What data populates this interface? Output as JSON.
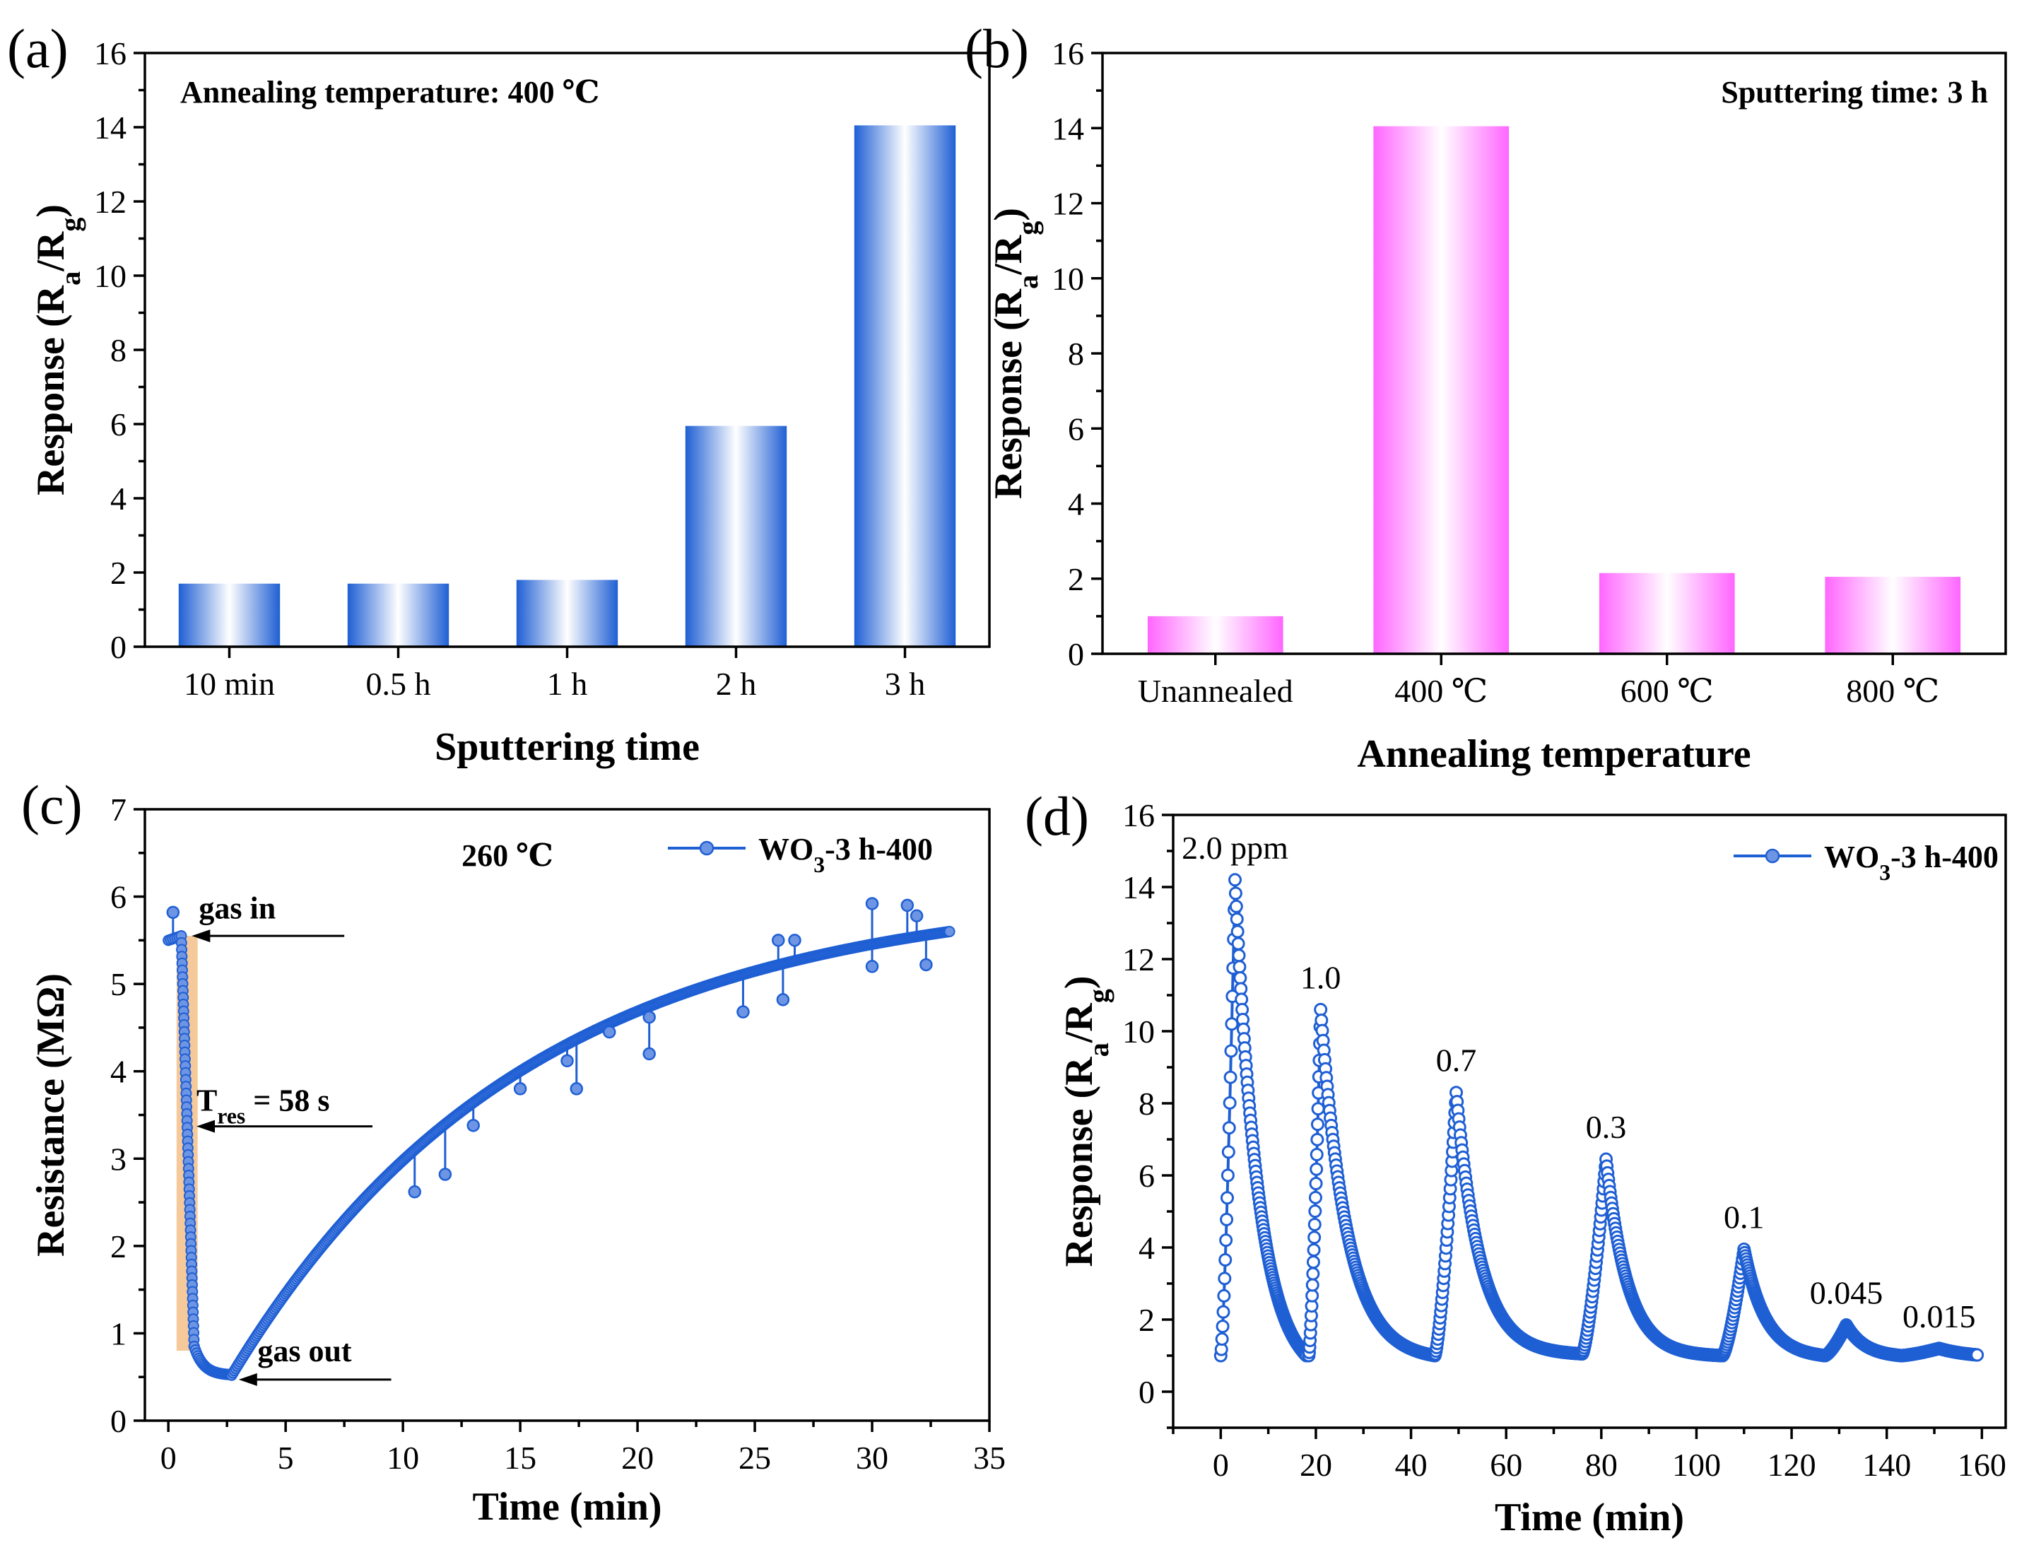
{
  "figure_width": 2871,
  "figure_height": 2193,
  "colors": {
    "blue": "#1f5fd4",
    "pink": "#ff66ff",
    "orange": "#f5c088",
    "axis": "#000000"
  },
  "chart_data": [
    {
      "id": "a",
      "type": "bar",
      "panel_label": "(a)",
      "title": "Annealing temperature: 400 ℃",
      "xlabel": "Sputtering time",
      "ylabel_parts": [
        "Response (R",
        "a",
        "/R",
        "g",
        ")"
      ],
      "categories": [
        "10 min",
        "0.5 h",
        "1 h",
        "2 h",
        "3 h"
      ],
      "values": [
        1.7,
        1.7,
        1.8,
        5.95,
        14.05
      ],
      "ylim": [
        0,
        16
      ],
      "yticks": [
        0,
        2,
        4,
        6,
        8,
        10,
        12,
        14,
        16
      ],
      "bar_color": "#1f5fd4",
      "grid": false
    },
    {
      "id": "b",
      "type": "bar",
      "panel_label": "(b)",
      "title": "Sputtering time: 3 h",
      "xlabel": "Annealing temperature",
      "ylabel_parts": [
        "Response (R",
        "a",
        "/R",
        "g",
        ")"
      ],
      "categories": [
        "Unannealed",
        "400 ℃",
        "600 ℃",
        "800 ℃"
      ],
      "values": [
        1.0,
        14.05,
        2.15,
        2.05
      ],
      "ylim": [
        0,
        16
      ],
      "yticks": [
        0,
        2,
        4,
        6,
        8,
        10,
        12,
        14,
        16
      ],
      "bar_color": "#ff66ff",
      "grid": false
    },
    {
      "id": "c",
      "type": "line",
      "panel_label": "(c)",
      "xlabel": "Time (min)",
      "ylabel": "Resistance (MΩ)",
      "xlim": [
        -1,
        35
      ],
      "ylim": [
        0,
        7
      ],
      "xticks": [
        0,
        5,
        10,
        15,
        20,
        25,
        30,
        35
      ],
      "yticks": [
        0,
        1,
        2,
        3,
        4,
        5,
        6,
        7
      ],
      "legend": "top-right",
      "series": [
        {
          "name_parts": [
            "WO",
            "3",
            "-3 h-400"
          ],
          "color": "#1f5fd4",
          "segments": [
            {
              "x0": 0.0,
              "x1": 0.55,
              "y0": 5.5,
              "y1": 5.55,
              "shape": "linear",
              "n": 6
            },
            {
              "x0": 0.55,
              "x1": 1.1,
              "y0": 5.55,
              "y1": 0.85,
              "shape": "linear",
              "n": 60
            },
            {
              "x0": 1.1,
              "x1": 2.7,
              "y0": 0.85,
              "y1": 0.52,
              "shape": "decay",
              "n": 30
            },
            {
              "x0": 2.7,
              "x1": 33.3,
              "y0": 0.52,
              "y1": 5.6,
              "shape": "recovery",
              "k": 0.08,
              "n": 520
            }
          ],
          "spikes": [
            {
              "x": 0.2,
              "y": 5.82
            },
            {
              "x": 10.5,
              "y": 2.62
            },
            {
              "x": 11.8,
              "y": 2.82
            },
            {
              "x": 13.0,
              "y": 3.38
            },
            {
              "x": 15.0,
              "y": 3.8
            },
            {
              "x": 17.0,
              "y": 4.12
            },
            {
              "x": 17.4,
              "y": 3.8
            },
            {
              "x": 18.8,
              "y": 4.45
            },
            {
              "x": 20.5,
              "y": 4.2
            },
            {
              "x": 20.5,
              "y": 4.62
            },
            {
              "x": 24.5,
              "y": 4.68
            },
            {
              "x": 26.0,
              "y": 5.5
            },
            {
              "x": 26.2,
              "y": 4.82
            },
            {
              "x": 26.7,
              "y": 5.5
            },
            {
              "x": 30.0,
              "y": 5.92
            },
            {
              "x": 30.0,
              "y": 5.2
            },
            {
              "x": 31.5,
              "y": 5.9
            },
            {
              "x": 31.9,
              "y": 5.78
            },
            {
              "x": 32.3,
              "y": 5.22
            }
          ]
        }
      ],
      "highlight": {
        "x0": 0.35,
        "x1": 1.25,
        "y0": 0.8,
        "y1": 5.55,
        "color": "#f5c088"
      },
      "annotations": {
        "temperature": "260 ℃",
        "gas_in": "gas in",
        "tres_parts": [
          "T",
          "res",
          " = 58 s"
        ],
        "gas_out": "gas out"
      }
    },
    {
      "id": "d",
      "type": "line",
      "panel_label": "(d)",
      "xlabel": "Time (min)",
      "ylabel_parts": [
        "Response (R",
        "a",
        "/R",
        "g",
        ")"
      ],
      "xlim": [
        -10,
        165
      ],
      "ylim": [
        -1,
        16
      ],
      "xticks": [
        0,
        20,
        40,
        60,
        80,
        100,
        120,
        140,
        160
      ],
      "yticks": [
        0,
        2,
        4,
        6,
        8,
        10,
        12,
        14,
        16
      ],
      "legend": "top-right",
      "series": [
        {
          "name_parts": [
            "WO",
            "3",
            "-3 h-400"
          ],
          "color": "#1f5fd4",
          "pulses": [
            {
              "start": 0.0,
              "peak_t": 3.0,
              "end": 18.0,
              "base": 1.0,
              "peak": 14.2,
              "end_val": 1.0,
              "k": 0.2,
              "rise_pts": 22,
              "decay_pts": 110
            },
            {
              "start": 18.5,
              "peak_t": 21.0,
              "end": 45.0,
              "base": 1.0,
              "peak": 10.6,
              "end_val": 1.0,
              "k": 0.18,
              "rise_pts": 28,
              "decay_pts": 140
            },
            {
              "start": 45.0,
              "peak_t": 49.5,
              "end": 76.0,
              "base": 1.0,
              "peak": 8.3,
              "end_val": 1.05,
              "k": 0.2,
              "rise_pts": 36,
              "decay_pts": 150
            },
            {
              "start": 76.0,
              "peak_t": 81.0,
              "end": 105.5,
              "base": 1.05,
              "peak": 6.45,
              "end_val": 1.0,
              "k": 0.22,
              "rise_pts": 36,
              "decay_pts": 150
            },
            {
              "start": 105.5,
              "peak_t": 110.0,
              "end": 127.0,
              "base": 1.0,
              "peak": 3.95,
              "end_val": 1.0,
              "k": 0.22,
              "rise_pts": 30,
              "decay_pts": 120
            },
            {
              "start": 127.0,
              "peak_t": 131.5,
              "end": 143.0,
              "base": 1.0,
              "peak": 1.85,
              "end_val": 1.0,
              "k": 0.25,
              "rise_pts": 26,
              "decay_pts": 90
            },
            {
              "start": 143.0,
              "peak_t": 151.0,
              "end": 159.0,
              "base": 1.0,
              "peak": 1.2,
              "end_val": 1.02,
              "k": 0.15,
              "rise_pts": 44,
              "decay_pts": 50
            }
          ]
        }
      ],
      "peak_labels": [
        {
          "text": "2.0 ppm",
          "x": 3.0,
          "y": 14.2
        },
        {
          "text": "1.0",
          "x": 21.0,
          "y": 10.6
        },
        {
          "text": "0.7",
          "x": 49.5,
          "y": 8.3
        },
        {
          "text": "0.3",
          "x": 81.0,
          "y": 6.45
        },
        {
          "text": "0.1",
          "x": 110.0,
          "y": 3.95
        },
        {
          "text": "0.045",
          "x": 131.5,
          "y": 1.85
        },
        {
          "text": "0.015",
          "x": 151.0,
          "y": 1.2
        }
      ]
    }
  ]
}
